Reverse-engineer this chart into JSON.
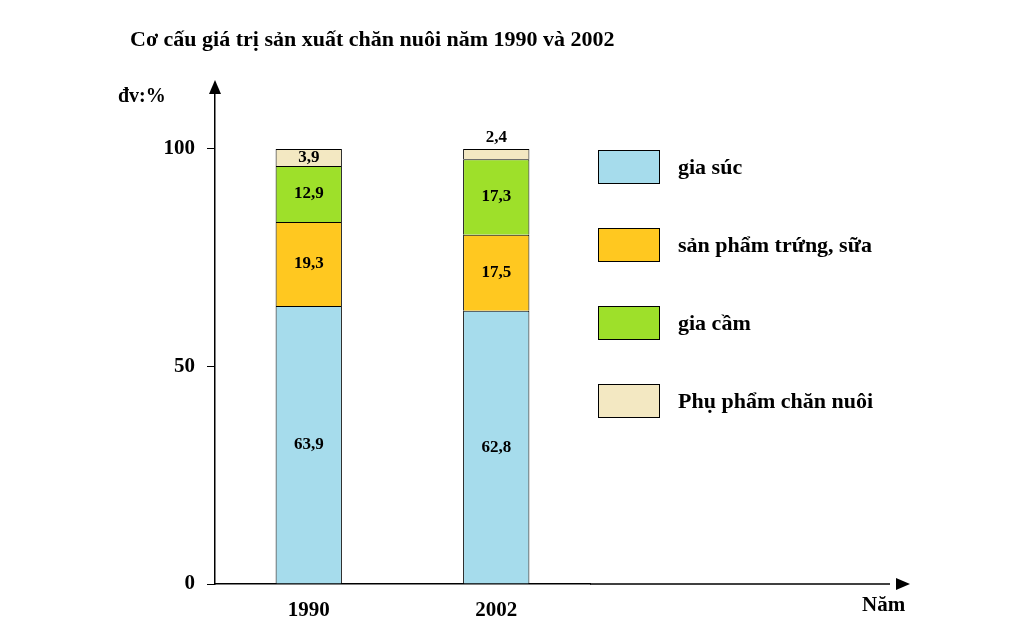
{
  "chart_data": {
    "type": "bar",
    "title": "Cơ cấu giá trị sản xuất chăn nuôi năm 1990 và 2002",
    "ylabel": "đv:%",
    "annotations": [
      "Năm"
    ],
    "categories": [
      "1990",
      "2002"
    ],
    "stacked": true,
    "ylim": [
      0,
      114
    ],
    "yticks": [
      0,
      50,
      100
    ],
    "grid": false,
    "legend": "right",
    "series": [
      {
        "name": "gia súc",
        "color": "#a6dcec",
        "values": [
          63.9,
          62.8
        ],
        "value_labels": [
          "63,9",
          "62,8"
        ]
      },
      {
        "name": "sản phẩm trứng, sữa",
        "color": "#ffc820",
        "values": [
          19.3,
          17.5
        ],
        "value_labels": [
          "19,3",
          "17,5"
        ]
      },
      {
        "name": "gia cầm",
        "color": "#9ee02a",
        "values": [
          12.9,
          17.3
        ],
        "value_labels": [
          "12,9",
          "17,3"
        ]
      },
      {
        "name": "Phụ phẩm chăn nuôi",
        "color": "#f3e8c2",
        "values": [
          3.9,
          2.4
        ],
        "value_labels": [
          "3,9",
          "2,4"
        ]
      }
    ]
  }
}
